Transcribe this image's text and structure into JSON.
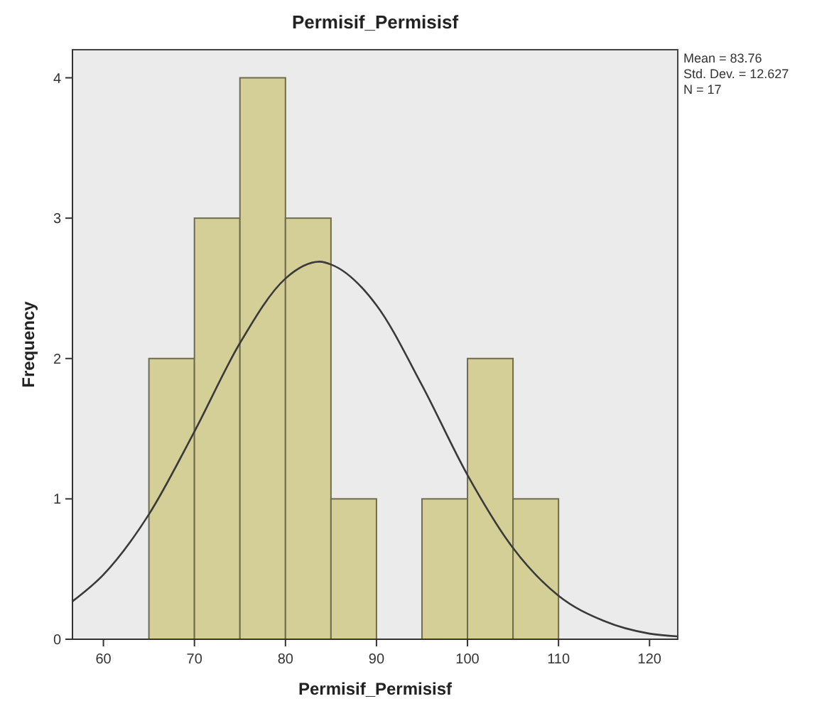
{
  "chart_data": {
    "type": "histogram",
    "title": "Permisif_Permisisf",
    "xlabel": "Permisif_Permisisf",
    "ylabel": "Frequency",
    "bins": [
      65,
      70,
      75,
      80,
      85,
      90,
      95,
      100,
      105,
      110
    ],
    "values": [
      2,
      3,
      4,
      3,
      1,
      0,
      1,
      2,
      1
    ],
    "color": "#d4cf97",
    "series": [
      {
        "type": "line",
        "color": "#3a3a3a",
        "marker": "none",
        "x": [
          56.6,
          60,
          65,
          70,
          75,
          80,
          83.76,
          85,
          90,
          95,
          100,
          105,
          110,
          115,
          120,
          123.1
        ],
        "values": [
          0.27,
          0.46,
          0.89,
          1.48,
          2.11,
          2.57,
          2.69,
          2.67,
          2.38,
          1.81,
          1.17,
          0.65,
          0.31,
          0.13,
          0.04,
          0.02
        ]
      }
    ],
    "xlim": [
      56.6,
      123.1
    ],
    "xticks": [
      60,
      70,
      80,
      90,
      100,
      110,
      120
    ],
    "ylim": [
      0,
      4.2
    ],
    "yticks": [
      0,
      1,
      2,
      3,
      4
    ],
    "grid": false,
    "annotations": [
      "Mean = 83.76",
      "Std. Dev. = 12.627",
      "N = 17"
    ]
  }
}
